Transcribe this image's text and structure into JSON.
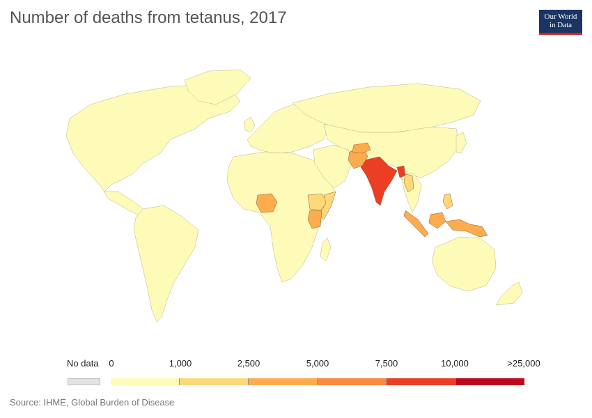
{
  "title": "Number of deaths from tetanus, 2017",
  "logo": {
    "line1": "Our World",
    "line2": "in Data"
  },
  "source": "Source: IHME, Global Burden of Disease",
  "legend": {
    "no_data_label": "No data",
    "no_data_color": "#e3e3e3",
    "tick_labels": [
      "0",
      "1,000",
      "2,500",
      "5,000",
      "7,500",
      "10,000",
      ">25,000"
    ],
    "colors": [
      "#fefbb9",
      "#fdd97a",
      "#fdac4d",
      "#f98a3e",
      "#ec3e23",
      "#c1071e"
    ]
  },
  "map": {
    "land_default_color": "#fefbb9",
    "highlights": [
      {
        "name": "India",
        "color": "#ec3e23"
      },
      {
        "name": "Bangladesh",
        "color": "#ec3e23"
      },
      {
        "name": "Pakistan",
        "color": "#fdac4d"
      },
      {
        "name": "Afghanistan",
        "color": "#fdac4d"
      },
      {
        "name": "Nigeria",
        "color": "#fdac4d"
      },
      {
        "name": "Ethiopia",
        "color": "#fdd97a"
      },
      {
        "name": "Somalia",
        "color": "#fdd97a"
      },
      {
        "name": "Kenya",
        "color": "#fdac4d"
      },
      {
        "name": "Indonesia",
        "color": "#fdac4d"
      },
      {
        "name": "Philippines",
        "color": "#fdd97a"
      },
      {
        "name": "Myanmar",
        "color": "#fdd97a"
      }
    ]
  }
}
